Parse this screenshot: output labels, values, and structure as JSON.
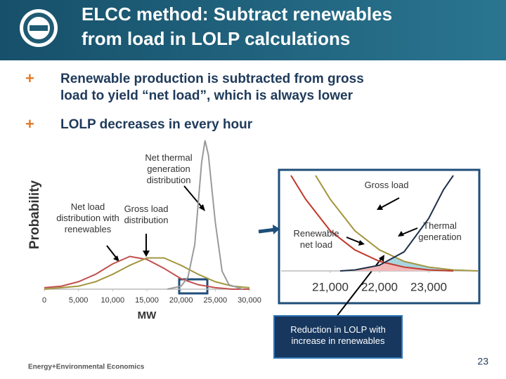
{
  "header": {
    "title_lines": [
      "ELCC method:  Subtract renewables",
      "from load in LOLP calculations"
    ]
  },
  "bullets": [
    [
      "Renewable production is subtracted from gross",
      "load to yield “net load”, which is always lower"
    ],
    [
      "LOLP decreases in every hour"
    ]
  ],
  "chart_data": [
    {
      "type": "line",
      "xlabel": "MW",
      "ylabel": "Probability",
      "xlim": [
        0,
        30000
      ],
      "ylim": [
        0,
        1
      ],
      "xticks": [
        0,
        {
          "value": 5000,
          "label": "5,000"
        },
        {
          "value": 10000,
          "label": "10,000"
        },
        {
          "value": 15000,
          "label": "15,000"
        },
        {
          "value": 20000,
          "label": "20,000"
        },
        {
          "value": 25000,
          "label": "25,000"
        },
        {
          "value": 30000,
          "label": "30,000"
        }
      ],
      "series": [
        {
          "name": "Net load distribution with renewables",
          "color": "#c0504d",
          "x": [
            0,
            2500,
            5000,
            7500,
            10000,
            12500,
            15000,
            17500,
            20000,
            22500,
            25000,
            27500,
            30000
          ],
          "values": [
            0.01,
            0.02,
            0.05,
            0.1,
            0.17,
            0.22,
            0.2,
            0.14,
            0.07,
            0.03,
            0.01,
            0,
            0
          ]
        },
        {
          "name": "Gross load distribution",
          "color": "#a3963f",
          "x": [
            0,
            2500,
            5000,
            7500,
            10000,
            12500,
            15000,
            17500,
            20000,
            22500,
            25000,
            27500,
            30000
          ],
          "values": [
            0,
            0.01,
            0.02,
            0.05,
            0.1,
            0.16,
            0.21,
            0.21,
            0.16,
            0.1,
            0.05,
            0.02,
            0.01
          ]
        },
        {
          "name": "Net thermal generation distribution",
          "color": "#9a9a9a",
          "x": [
            18000,
            20000,
            21000,
            22000,
            23000,
            23500,
            24000,
            25000,
            26000,
            27000,
            29000
          ],
          "values": [
            0,
            0.02,
            0.08,
            0.3,
            0.85,
            1.0,
            0.9,
            0.45,
            0.12,
            0.03,
            0
          ]
        }
      ]
    },
    {
      "type": "line",
      "xlim": [
        20000,
        24000
      ],
      "ylim": [
        0,
        1
      ],
      "overlap_fill": true,
      "xticks": [
        {
          "value": 21000,
          "label": "21,000"
        },
        {
          "value": 22000,
          "label": "22,000"
        },
        {
          "value": 23000,
          "label": "23,000"
        }
      ],
      "series": [
        {
          "name": "Gross load",
          "color": "#a3963f",
          "fill": "#a8d5df",
          "x": [
            20700,
            21000,
            21500,
            22000,
            22500,
            23000,
            23500,
            24000
          ],
          "values": [
            1.0,
            0.75,
            0.42,
            0.22,
            0.1,
            0.04,
            0.01,
            0
          ]
        },
        {
          "name": "Renewable net load",
          "color": "#c0392b",
          "fill": "#f2b8b8",
          "x": [
            20200,
            20500,
            21000,
            21500,
            22000,
            22500,
            23000,
            23500
          ],
          "values": [
            1.0,
            0.75,
            0.42,
            0.22,
            0.1,
            0.04,
            0.01,
            0
          ]
        },
        {
          "name": "Thermal generation",
          "color": "#1f2f4a",
          "x": [
            21200,
            21500,
            22000,
            22500,
            23000,
            23300,
            23500
          ],
          "values": [
            0,
            0.01,
            0.06,
            0.2,
            0.55,
            0.85,
            1.0
          ]
        }
      ],
      "annotations": [
        "Reduction in LOLP with increase in renewables"
      ]
    }
  ],
  "footer": {
    "company": "Energy+Environmental Economics",
    "page": "23"
  }
}
